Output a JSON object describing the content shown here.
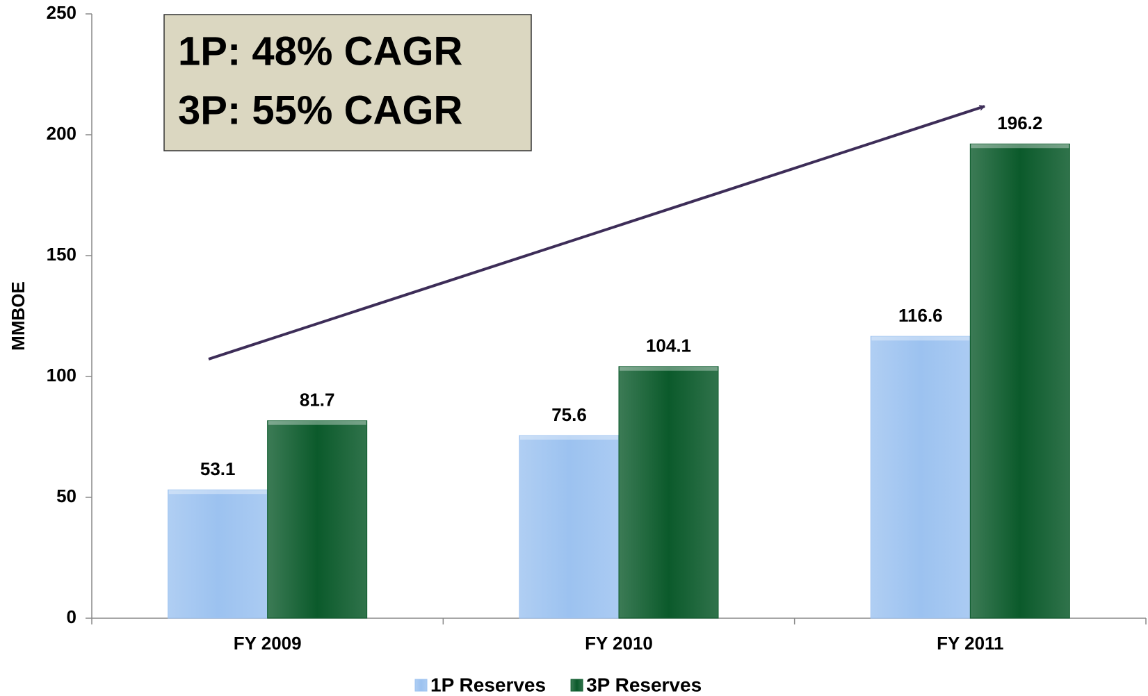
{
  "chart_data": {
    "type": "bar",
    "y_label": "MMBOE",
    "annotations": [
      "1P: 48% CAGR",
      "3P: 55% CAGR"
    ],
    "categories": [
      "FY 2009",
      "FY 2010",
      "FY 2011"
    ],
    "series": [
      {
        "name": "1P Reserves",
        "color": "#9cc2f0",
        "values": [
          53.1,
          75.6,
          116.6
        ]
      },
      {
        "name": "3P Reserves",
        "color": "#0b5a2b",
        "values": [
          81.7,
          104.1,
          196.2
        ]
      }
    ],
    "ylim": [
      0,
      250
    ],
    "yticks": [
      0,
      50,
      100,
      150,
      200,
      250
    ],
    "grid": false,
    "legend": "bottom"
  }
}
